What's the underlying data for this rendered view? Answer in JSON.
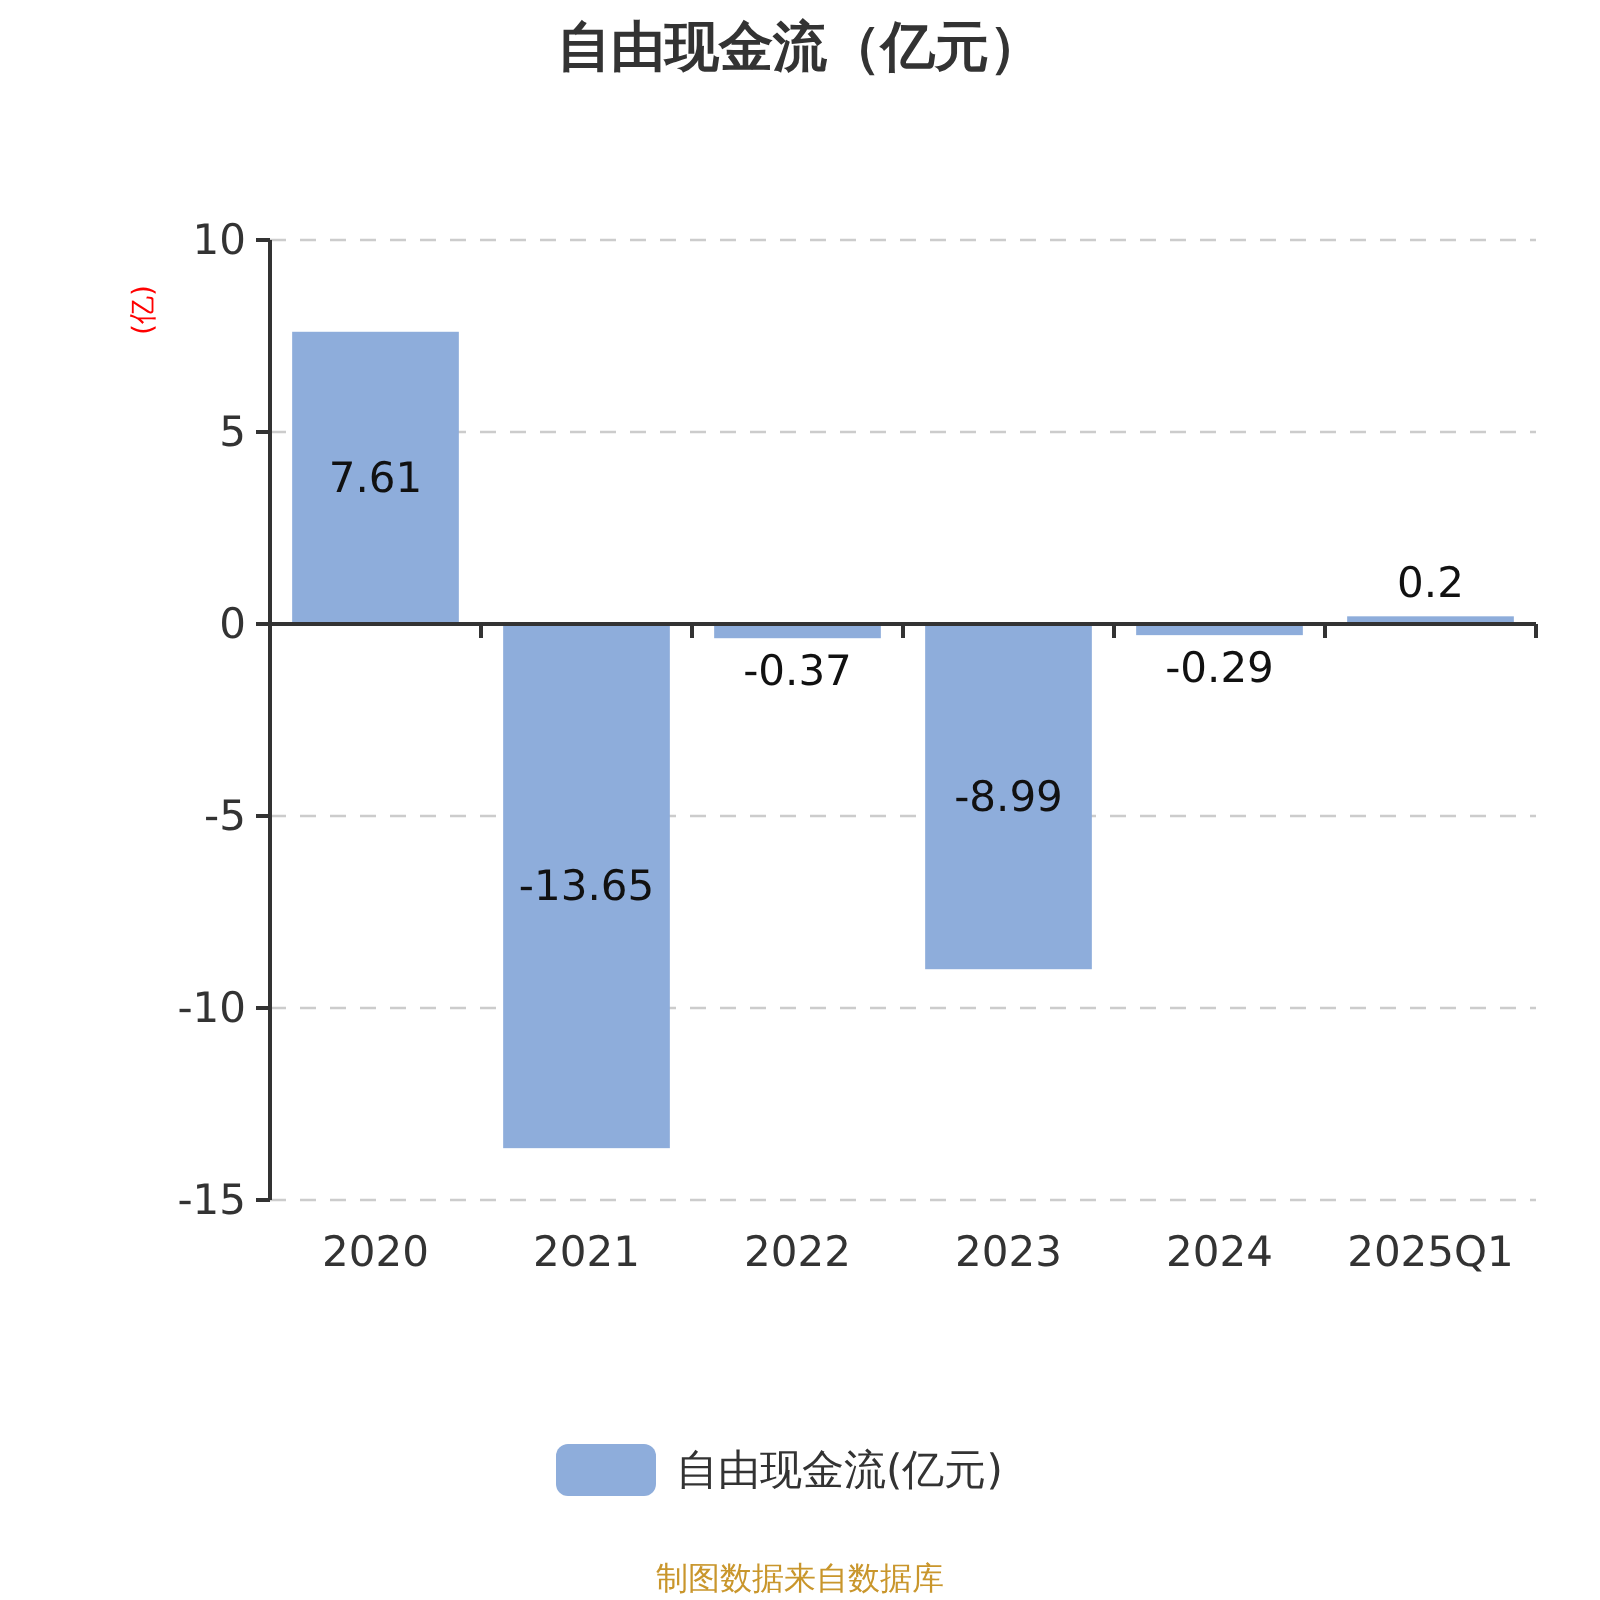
{
  "chart_data": {
    "type": "bar",
    "title": "自由现金流（亿元）",
    "ylabel": "(亿)",
    "categories": [
      "2020",
      "2021",
      "2022",
      "2023",
      "2024",
      "2025Q1"
    ],
    "series": [
      {
        "name": "自由现金流(亿元)",
        "color": "#8eaddb",
        "values": [
          7.61,
          -13.65,
          -0.37,
          -8.99,
          -0.29,
          0.2
        ]
      }
    ],
    "ylim": [
      -15,
      10
    ],
    "yticks": [
      -15,
      -10,
      -5,
      0,
      5,
      10
    ],
    "grid": "y",
    "legend": "bottom",
    "data_labels": true,
    "annotations": [
      "制图数据来自数据库"
    ]
  }
}
